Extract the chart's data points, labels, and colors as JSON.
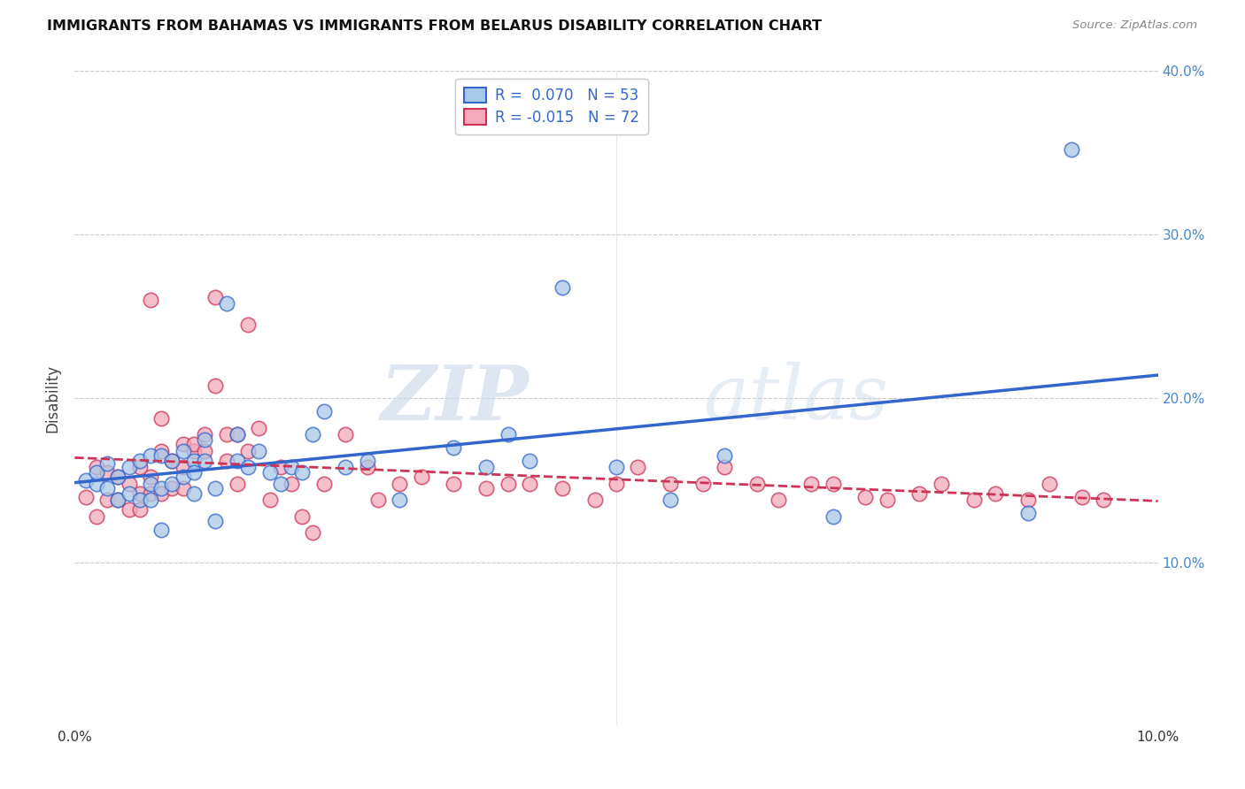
{
  "title": "IMMIGRANTS FROM BAHAMAS VS IMMIGRANTS FROM BELARUS DISABILITY CORRELATION CHART",
  "source": "Source: ZipAtlas.com",
  "ylabel": "Disability",
  "xlim": [
    0.0,
    0.1
  ],
  "ylim": [
    0.0,
    0.4
  ],
  "r_bahamas": 0.07,
  "n_bahamas": 53,
  "r_belarus": -0.015,
  "n_belarus": 72,
  "color_bahamas": "#a8c8e8",
  "color_belarus": "#f4aabb",
  "line_color_bahamas": "#3366cc",
  "line_color_belarus": "#cc3355",
  "watermark_zip": "ZIP",
  "watermark_atlas": "atlas",
  "legend_label_bahamas": "Immigrants from Bahamas",
  "legend_label_belarus": "Immigrants from Belarus",
  "bahamas_x": [
    0.001,
    0.002,
    0.002,
    0.003,
    0.003,
    0.004,
    0.004,
    0.005,
    0.005,
    0.006,
    0.006,
    0.007,
    0.007,
    0.007,
    0.008,
    0.008,
    0.008,
    0.009,
    0.009,
    0.01,
    0.01,
    0.011,
    0.011,
    0.011,
    0.012,
    0.012,
    0.013,
    0.013,
    0.014,
    0.015,
    0.015,
    0.016,
    0.017,
    0.018,
    0.019,
    0.02,
    0.021,
    0.022,
    0.023,
    0.025,
    0.027,
    0.03,
    0.035,
    0.038,
    0.04,
    0.042,
    0.045,
    0.05,
    0.055,
    0.06,
    0.07,
    0.088,
    0.092
  ],
  "bahamas_y": [
    0.15,
    0.148,
    0.155,
    0.145,
    0.16,
    0.152,
    0.138,
    0.158,
    0.142,
    0.162,
    0.138,
    0.165,
    0.148,
    0.138,
    0.165,
    0.145,
    0.12,
    0.162,
    0.148,
    0.168,
    0.152,
    0.162,
    0.155,
    0.142,
    0.175,
    0.162,
    0.145,
    0.125,
    0.258,
    0.178,
    0.162,
    0.158,
    0.168,
    0.155,
    0.148,
    0.158,
    0.155,
    0.178,
    0.192,
    0.158,
    0.162,
    0.138,
    0.17,
    0.158,
    0.178,
    0.162,
    0.268,
    0.158,
    0.138,
    0.165,
    0.128,
    0.13,
    0.352
  ],
  "belarus_x": [
    0.001,
    0.002,
    0.002,
    0.003,
    0.003,
    0.004,
    0.004,
    0.005,
    0.005,
    0.006,
    0.006,
    0.006,
    0.007,
    0.007,
    0.007,
    0.008,
    0.008,
    0.008,
    0.009,
    0.009,
    0.01,
    0.01,
    0.01,
    0.011,
    0.011,
    0.012,
    0.012,
    0.013,
    0.013,
    0.014,
    0.014,
    0.015,
    0.015,
    0.016,
    0.016,
    0.017,
    0.018,
    0.019,
    0.02,
    0.021,
    0.022,
    0.023,
    0.025,
    0.027,
    0.028,
    0.03,
    0.032,
    0.035,
    0.038,
    0.04,
    0.042,
    0.045,
    0.048,
    0.05,
    0.052,
    0.055,
    0.058,
    0.06,
    0.063,
    0.065,
    0.068,
    0.07,
    0.073,
    0.075,
    0.078,
    0.08,
    0.083,
    0.085,
    0.088,
    0.09,
    0.093,
    0.095
  ],
  "belarus_y": [
    0.14,
    0.158,
    0.128,
    0.155,
    0.138,
    0.152,
    0.138,
    0.148,
    0.132,
    0.158,
    0.142,
    0.132,
    0.152,
    0.26,
    0.142,
    0.168,
    0.142,
    0.188,
    0.162,
    0.145,
    0.172,
    0.158,
    0.145,
    0.168,
    0.172,
    0.178,
    0.168,
    0.262,
    0.208,
    0.178,
    0.162,
    0.178,
    0.148,
    0.168,
    0.245,
    0.182,
    0.138,
    0.158,
    0.148,
    0.128,
    0.118,
    0.148,
    0.178,
    0.158,
    0.138,
    0.148,
    0.152,
    0.148,
    0.145,
    0.148,
    0.148,
    0.145,
    0.138,
    0.148,
    0.158,
    0.148,
    0.148,
    0.158,
    0.148,
    0.138,
    0.148,
    0.148,
    0.14,
    0.138,
    0.142,
    0.148,
    0.138,
    0.142,
    0.138,
    0.148,
    0.14,
    0.138
  ]
}
